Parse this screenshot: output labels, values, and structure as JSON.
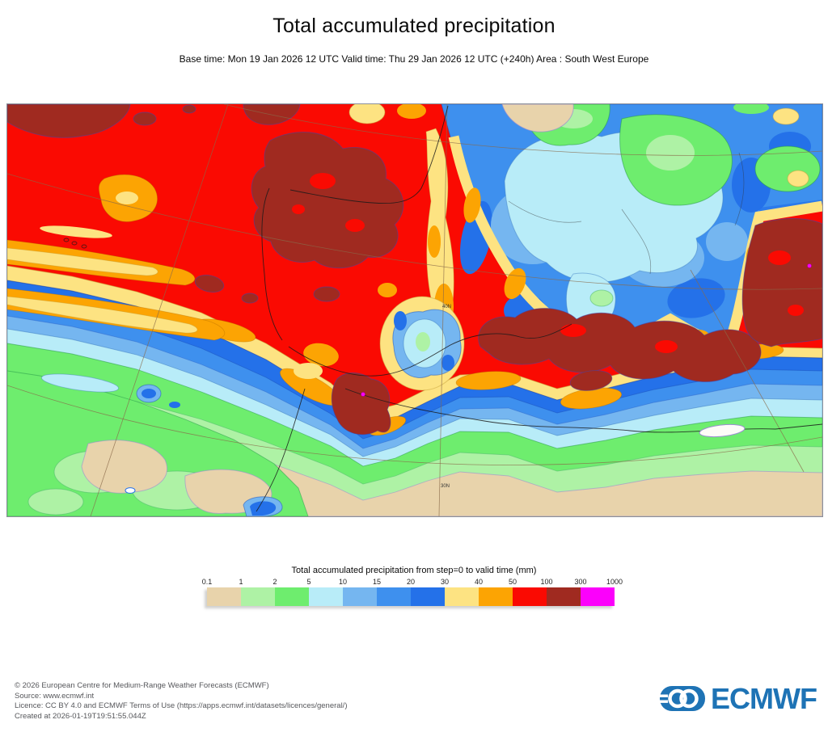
{
  "header": {
    "title": "Total accumulated precipitation",
    "subtitle": "Base time: Mon 19 Jan 2026 12 UTC Valid time: Thu 29 Jan 2026 12 UTC (+240h) Area : South West Europe"
  },
  "map": {
    "area_label": "South West Europe",
    "graticule_labels": [
      "40N",
      "30N"
    ]
  },
  "legend": {
    "title": "Total accumulated precipitation from step=0 to valid time (mm)",
    "ticks": [
      "0.1",
      "1",
      "2",
      "5",
      "10",
      "15",
      "20",
      "30",
      "40",
      "50",
      "100",
      "300",
      "1000"
    ],
    "colors": [
      "#e8d3ab",
      "#aef2a5",
      "#6eed6e",
      "#b8ecf8",
      "#75b6f0",
      "#3e90ee",
      "#2471e9",
      "#fde382",
      "#fca403",
      "#fa0a02",
      "#a02a20",
      "#fb01fb"
    ]
  },
  "footer": {
    "lines": [
      "© 2026 European Centre for Medium-Range Weather Forecasts (ECMWF)",
      "Source: www.ecmwf.int",
      "Licence: CC BY 4.0 and ECMWF Terms of Use (https://apps.ecmwf.int/datasets/licences/general/)",
      "Created at 2026-01-19T19:51:55.044Z"
    ],
    "logo_text": "ECMWF",
    "logo_color": "#1e73b5"
  }
}
